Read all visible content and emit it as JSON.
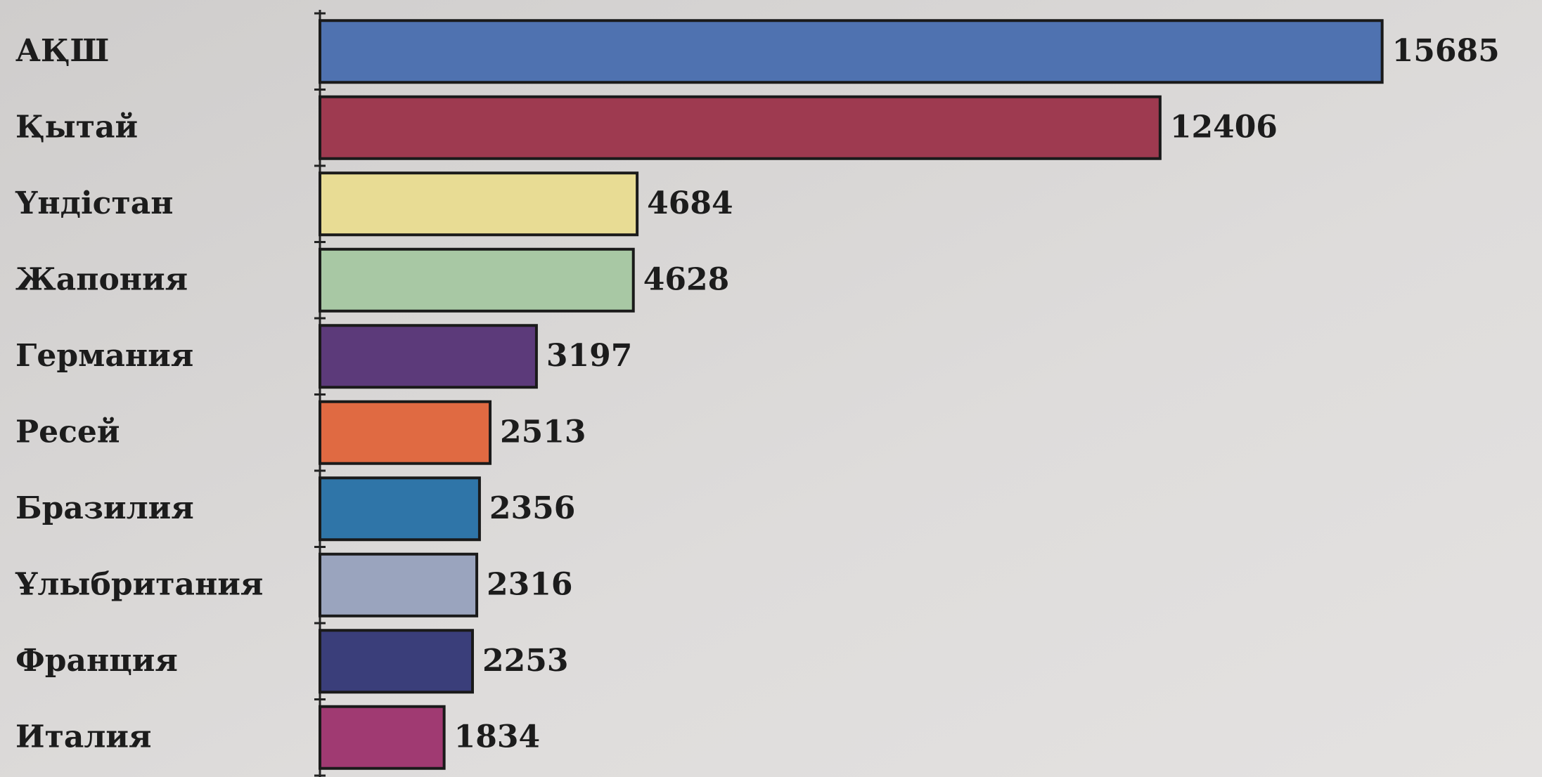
{
  "chart_data": {
    "type": "bar",
    "orientation": "horizontal",
    "categories": [
      "АҚШ",
      "Қытай",
      "Үндістан",
      "Жапония",
      "Германия",
      "Ресей",
      "Бразилия",
      "Ұлыбритания",
      "Франция",
      "Италия"
    ],
    "values": [
      15685,
      12406,
      4684,
      4628,
      3197,
      2513,
      2356,
      2316,
      2253,
      1834
    ],
    "colors": [
      "#4f72b0",
      "#9e3a50",
      "#e8dc94",
      "#a8c8a4",
      "#5c3a7a",
      "#e06a42",
      "#2f75a8",
      "#9aa4be",
      "#3a3e7a",
      "#a03a72"
    ],
    "xlim": [
      0,
      16000
    ]
  }
}
